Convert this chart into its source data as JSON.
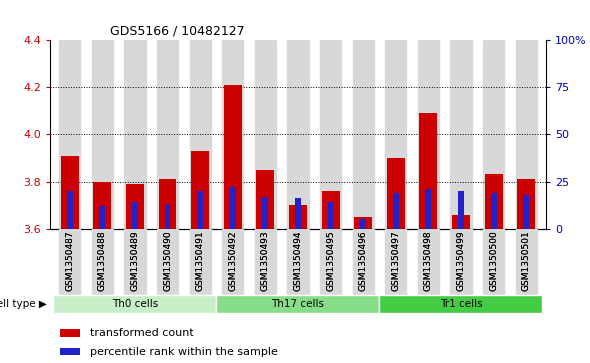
{
  "title": "GDS5166 / 10482127",
  "samples": [
    "GSM1350487",
    "GSM1350488",
    "GSM1350489",
    "GSM1350490",
    "GSM1350491",
    "GSM1350492",
    "GSM1350493",
    "GSM1350494",
    "GSM1350495",
    "GSM1350496",
    "GSM1350497",
    "GSM1350498",
    "GSM1350499",
    "GSM1350500",
    "GSM1350501"
  ],
  "transformed_count": [
    3.91,
    3.8,
    3.79,
    3.81,
    3.93,
    4.21,
    3.85,
    3.7,
    3.76,
    3.65,
    3.9,
    4.09,
    3.66,
    3.83,
    3.81
  ],
  "percentile_rank": [
    20,
    12,
    14,
    13,
    20,
    22,
    17,
    16,
    14,
    5,
    19,
    21,
    20,
    19,
    18
  ],
  "ylim_left": [
    3.6,
    4.4
  ],
  "ylim_right": [
    0,
    100
  ],
  "yticks_left": [
    3.6,
    3.8,
    4.0,
    4.2,
    4.4
  ],
  "yticks_right": [
    0,
    25,
    50,
    75,
    100
  ],
  "ytick_labels_right": [
    "0",
    "25",
    "50",
    "75",
    "100%"
  ],
  "cell_groups": [
    {
      "label": "Th0 cells",
      "start": 0,
      "end": 4,
      "color": "#c8eec8"
    },
    {
      "label": "Th17 cells",
      "start": 5,
      "end": 9,
      "color": "#88dd88"
    },
    {
      "label": "Tr1 cells",
      "start": 10,
      "end": 14,
      "color": "#44cc44"
    }
  ],
  "bar_color_red": "#cc0000",
  "bar_color_blue": "#2222cc",
  "bar_width": 0.55,
  "blue_bar_width": 0.18,
  "bg_color": "#d8d8d8",
  "left_tick_color": "#cc0000",
  "right_tick_color": "#0000cc",
  "legend_labels": [
    "transformed count",
    "percentile rank within the sample"
  ],
  "cell_type_label": "cell type",
  "dotted_gridlines": [
    3.8,
    4.0,
    4.2
  ]
}
